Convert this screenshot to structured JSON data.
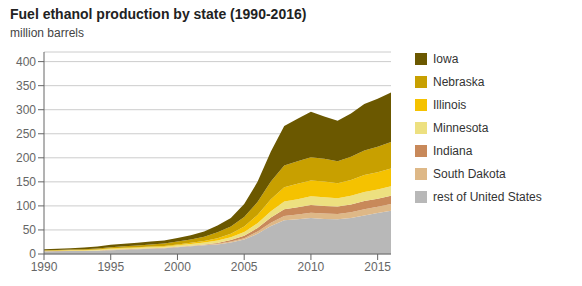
{
  "chart_data": {
    "type": "area",
    "title": "Fuel ethanol production by state (1990-2016)",
    "ylabel": "million barrels",
    "x": [
      1990,
      1991,
      1992,
      1993,
      1994,
      1995,
      1996,
      1997,
      1998,
      1999,
      2000,
      2001,
      2002,
      2003,
      2004,
      2005,
      2006,
      2007,
      2008,
      2009,
      2010,
      2011,
      2012,
      2013,
      2014,
      2015,
      2016
    ],
    "series": [
      {
        "name": "rest of United States",
        "color": "#b8b8b8",
        "values": [
          5,
          5.5,
          6,
          6,
          7,
          8,
          9,
          10,
          11,
          12,
          14,
          16,
          18,
          20,
          24,
          30,
          42,
          58,
          70,
          72,
          75,
          73,
          72,
          75,
          80,
          85,
          90
        ]
      },
      {
        "name": "South Dakota",
        "color": "#deb887",
        "values": [
          0.3,
          0.3,
          0.3,
          0.3,
          0.3,
          0.4,
          0.4,
          0.4,
          0.5,
          0.5,
          0.5,
          0.5,
          1,
          1.5,
          2,
          3,
          5,
          7,
          9,
          10,
          11,
          11,
          11,
          12,
          13,
          13,
          14
        ]
      },
      {
        "name": "Indiana",
        "color": "#c8895a",
        "values": [
          0.2,
          0.2,
          0.2,
          0.2,
          0.2,
          0.3,
          0.3,
          0.3,
          0.3,
          0.3,
          0.5,
          0.8,
          1,
          1.5,
          3,
          5,
          7,
          11,
          14,
          15,
          16,
          16,
          16,
          16,
          17,
          17,
          17
        ]
      },
      {
        "name": "Minnesota",
        "color": "#ede080",
        "values": [
          1,
          1,
          1.2,
          1.5,
          1.5,
          2,
          2.5,
          2.5,
          2.5,
          2.5,
          3,
          3.5,
          4,
          5,
          6,
          8,
          10,
          13,
          16,
          17,
          18,
          18,
          17,
          18,
          19,
          19,
          20
        ]
      },
      {
        "name": "Illinois",
        "color": "#f5c200",
        "values": [
          0.5,
          0.5,
          0.5,
          0.5,
          0.5,
          1,
          1,
          1,
          1.5,
          1.5,
          2,
          2.5,
          3,
          5,
          7,
          11,
          17,
          25,
          30,
          32,
          33,
          33,
          31,
          33,
          35,
          36,
          37
        ]
      },
      {
        "name": "Nebraska",
        "color": "#c8a000",
        "values": [
          1,
          1,
          1,
          1.5,
          2,
          2.5,
          3,
          3.5,
          4,
          5,
          6,
          7,
          9,
          12,
          15,
          20,
          27,
          37,
          45,
          47,
          48,
          47,
          46,
          48,
          51,
          53,
          55
        ]
      },
      {
        "name": "Iowa",
        "color": "#6b5800",
        "values": [
          2,
          2.5,
          3,
          3.5,
          4,
          5,
          5,
          5.5,
          6,
          6.5,
          7.5,
          8.5,
          11,
          14,
          18,
          27,
          42,
          62,
          82,
          88,
          95,
          88,
          84,
          90,
          97,
          100,
          103
        ]
      }
    ],
    "xlim": [
      1990,
      2016
    ],
    "xticks": [
      1990,
      1995,
      2000,
      2005,
      2010,
      2015
    ],
    "ylim": [
      0,
      420
    ],
    "yticks": [
      0,
      50,
      100,
      150,
      200,
      250,
      300,
      350,
      400
    ],
    "stacked": true,
    "grid": true,
    "legend": "right"
  }
}
